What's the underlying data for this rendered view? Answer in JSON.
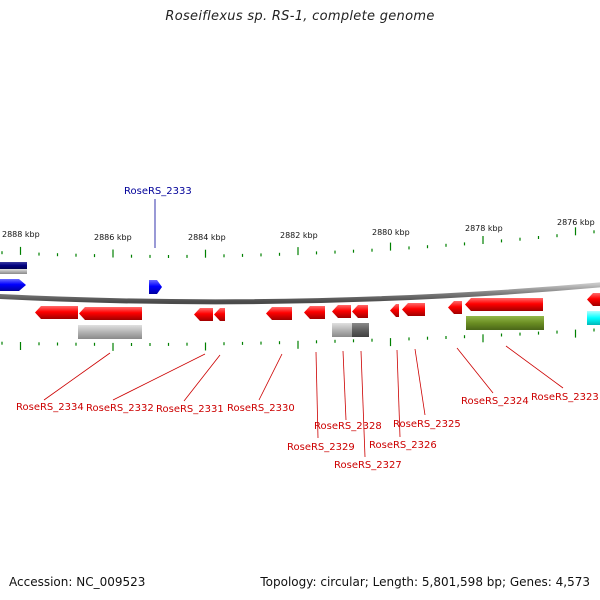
{
  "title": "Roseiflexus sp. RS-1, complete genome",
  "footer": {
    "accession": "Accession: NC_009523",
    "topology": "Topology: circular; Length: 5,801,598 bp; Genes: 4,573"
  },
  "colors": {
    "backbone": "#808080",
    "reverse_gene": "#ff0000",
    "forward_gene": "#0000ff",
    "forward_gene_dark": "#000080",
    "tick": "#008000",
    "label_reverse": "#cc0000",
    "label_forward": "#000099",
    "feature_gray": "#b4b4b4",
    "feature_dark_gray": "#606060",
    "feature_olive": "#6b8e23",
    "feature_cyan": "#00ffff"
  },
  "scale": {
    "unit": "kbp",
    "tick_labels": [
      "2888 kbp",
      "2886 kbp",
      "2884 kbp",
      "2882 kbp",
      "2880 kbp",
      "2878 kbp",
      "2876 kbp"
    ]
  },
  "genes_labeled": [
    {
      "name": "RoseRS_2334",
      "strand": "reverse"
    },
    {
      "name": "RoseRS_2333",
      "strand": "forward"
    },
    {
      "name": "RoseRS_2332",
      "strand": "reverse"
    },
    {
      "name": "RoseRS_2331",
      "strand": "reverse"
    },
    {
      "name": "RoseRS_2330",
      "strand": "reverse"
    },
    {
      "name": "RoseRS_2329",
      "strand": "reverse"
    },
    {
      "name": "RoseRS_2328",
      "strand": "reverse"
    },
    {
      "name": "RoseRS_2327",
      "strand": "reverse"
    },
    {
      "name": "RoseRS_2326",
      "strand": "reverse"
    },
    {
      "name": "RoseRS_2325",
      "strand": "reverse"
    },
    {
      "name": "RoseRS_2324",
      "strand": "reverse"
    },
    {
      "name": "RoseRS_2323",
      "strand": "reverse"
    }
  ]
}
